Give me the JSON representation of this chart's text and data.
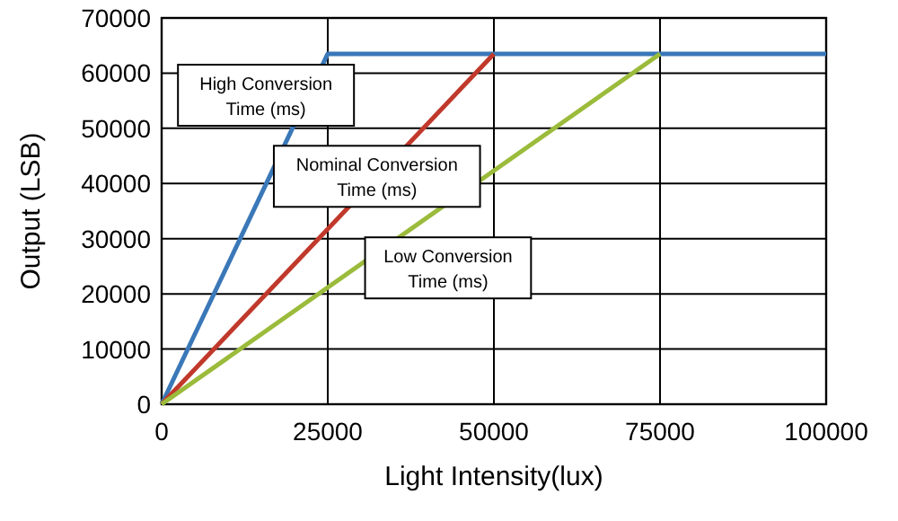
{
  "chart_data": {
    "type": "line",
    "xlabel": "Light Intensity(lux)",
    "ylabel": "Output (LSB)",
    "xlim": [
      0,
      100000
    ],
    "xticks": [
      0,
      25000,
      50000,
      75000,
      100000
    ],
    "ylim": [
      0,
      70000
    ],
    "yticks": [
      0,
      10000,
      20000,
      30000,
      40000,
      50000,
      60000,
      70000
    ],
    "grid": true,
    "series": [
      {
        "name": "High Conversion Time (ms)",
        "color": "#3a78b8",
        "x": [
          0,
          25000,
          100000
        ],
        "values": [
          0,
          63500,
          63500
        ]
      },
      {
        "name": "Nominal Conversion Time (ms)",
        "color": "#c0392b",
        "x": [
          0,
          50000
        ],
        "values": [
          0,
          63500
        ]
      },
      {
        "name": "Low Conversion Time (ms)",
        "color": "#9bbb3b",
        "x": [
          0,
          75000
        ],
        "values": [
          0,
          63500
        ]
      }
    ]
  }
}
